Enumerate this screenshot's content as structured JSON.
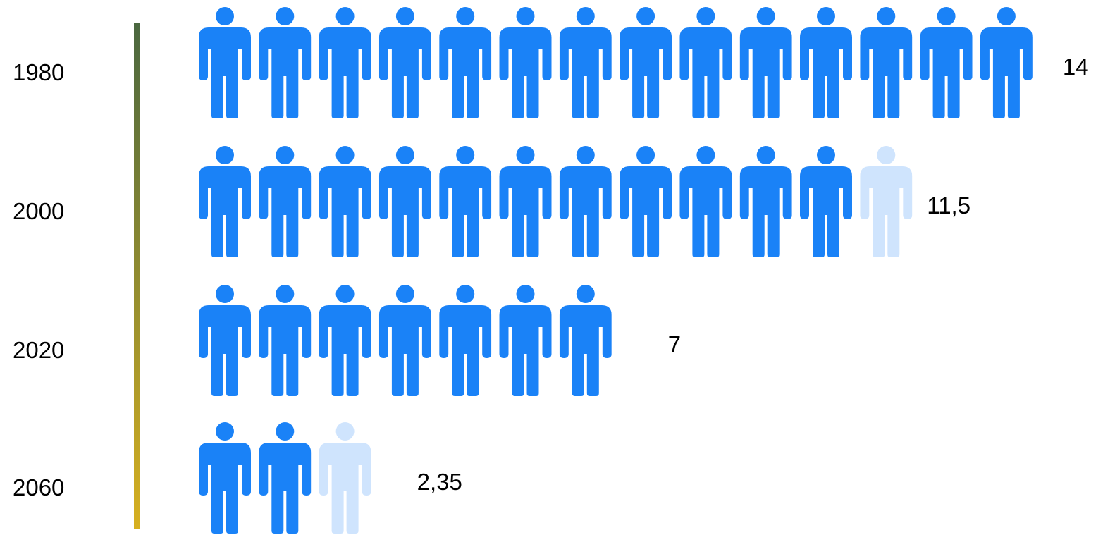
{
  "chart_data": {
    "type": "bar",
    "orientation": "horizontal",
    "style": "pictograph",
    "icon": "person-icon",
    "categories": [
      "1980",
      "2000",
      "2020",
      "2060"
    ],
    "values": [
      14,
      11.5,
      7,
      2.35
    ],
    "value_labels": [
      "14",
      "11,5",
      "7",
      "2,35"
    ],
    "title": "",
    "xlabel": "",
    "ylabel": "",
    "xlim": [
      0,
      14
    ],
    "grid": false,
    "legend": "none",
    "colors": {
      "icon": "#1a82f7",
      "icon_faded": "#cfe4fd",
      "axis_top": "#4a6740",
      "axis_bottom": "#d7b020",
      "text": "#000000"
    }
  }
}
